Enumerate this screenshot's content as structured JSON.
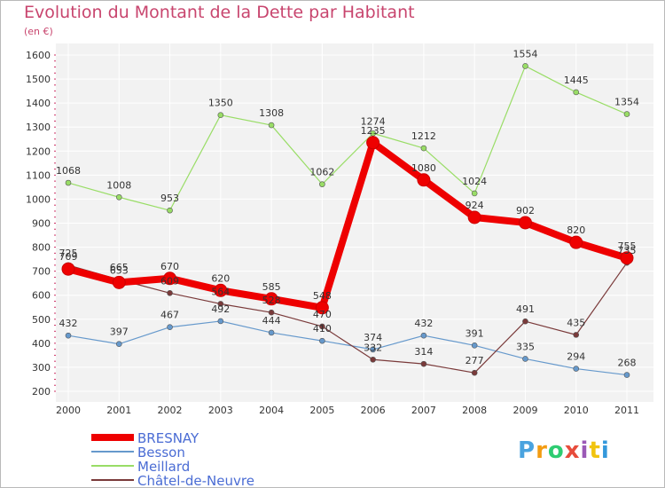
{
  "header": {
    "title": "Evolution du Montant de la Dette par Habitant",
    "unit": "(en €)"
  },
  "logo": {
    "letters": [
      "P",
      "r",
      "o",
      "x",
      "i",
      "t",
      "i"
    ],
    "colors": [
      "#4aa3df",
      "#f39c12",
      "#2ecc71",
      "#e74c3c",
      "#9b59b6",
      "#f1c40f",
      "#3498db"
    ]
  },
  "chart_data": {
    "type": "line",
    "title": "Evolution du Montant de la Dette par Habitant",
    "ylabel": "(en €)",
    "xlabel": "",
    "x": [
      "2000",
      "2001",
      "2002",
      "2003",
      "2004",
      "2005",
      "2006",
      "2007",
      "2008",
      "2009",
      "2010",
      "2011"
    ],
    "ylim": [
      200,
      1600
    ],
    "yticks": [
      "200",
      "300",
      "400",
      "500",
      "600",
      "700",
      "800",
      "900",
      "1000",
      "1100",
      "1200",
      "1300",
      "1400",
      "1500",
      "1600"
    ],
    "grid": true,
    "legend_position": "bottom-left",
    "series": [
      {
        "name": "BRESNAY",
        "color": "#ee0000",
        "values": [
          709,
          653,
          670,
          620,
          585,
          548,
          1235,
          1080,
          924,
          902,
          820,
          755
        ],
        "labels": [
          "709",
          "653",
          "670",
          "620",
          "585",
          "548",
          "1235",
          "1080",
          "924",
          "902",
          "820",
          "755"
        ]
      },
      {
        "name": "Besson",
        "color": "#6699cc",
        "values": [
          432,
          397,
          467,
          492,
          444,
          410,
          374,
          432,
          391,
          335,
          294,
          268
        ],
        "labels": [
          "432",
          "397",
          "467",
          "492",
          "444",
          "410",
          "374",
          "432",
          "391",
          "335",
          "294",
          "268"
        ]
      },
      {
        "name": "Meillard",
        "color": "#99dd66",
        "values": [
          1068,
          1008,
          953,
          1350,
          1308,
          1062,
          1274,
          1212,
          1024,
          1554,
          1445,
          1354
        ],
        "labels": [
          "1068",
          "1008",
          "953",
          "1350",
          "1308",
          "1062",
          "1274",
          "1212",
          "1024",
          "1554",
          "1445",
          "1354"
        ]
      },
      {
        "name": "Châtel-de-Neuvre",
        "color": "#7a3a3a",
        "values": [
          725,
          665,
          609,
          564,
          528,
          470,
          332,
          314,
          277,
          491,
          435,
          735
        ],
        "labels": [
          "725",
          "665",
          "609",
          "564",
          "528",
          "470",
          "332",
          "314",
          "277",
          "491",
          "435",
          "735"
        ]
      }
    ]
  }
}
